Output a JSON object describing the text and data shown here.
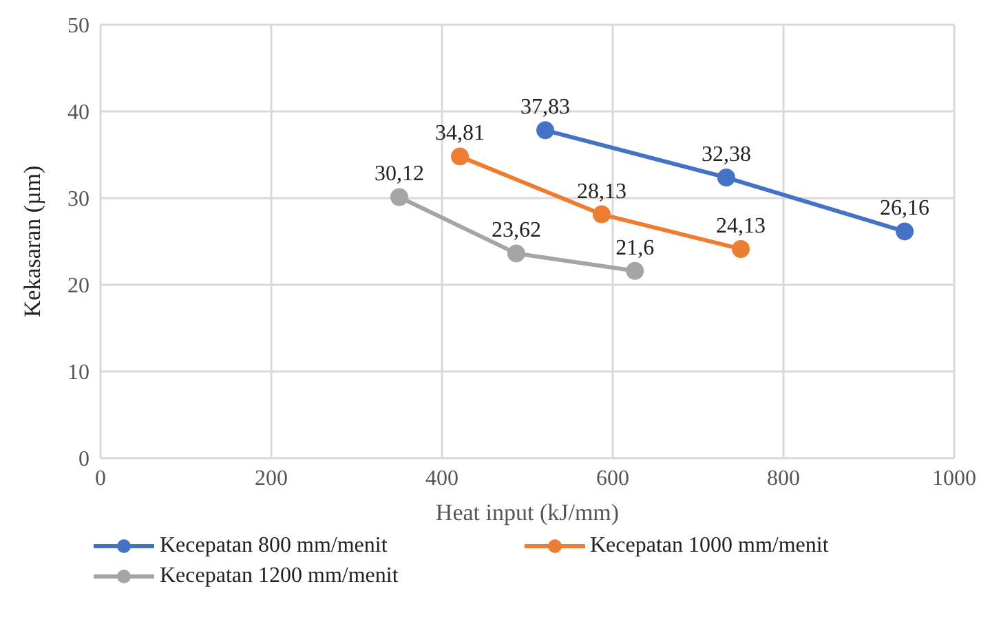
{
  "chart_data": {
    "type": "line",
    "xlabel": "Heat input (kJ/mm)",
    "ylabel": "Kekasaran (µm)",
    "xlim": [
      0,
      1000
    ],
    "xticks": [
      0,
      200,
      400,
      600,
      800,
      1000
    ],
    "ylim": [
      0,
      50
    ],
    "yticks": [
      0,
      10,
      20,
      30,
      40,
      50
    ],
    "grid": true,
    "legend": "bottom",
    "marker": "circle",
    "series": [
      {
        "name": "Kecepatan 800 mm/menit",
        "color": "#4472c4",
        "x": [
          521,
          733,
          942
        ],
        "values": [
          37.83,
          32.38,
          26.16
        ],
        "value_labels": [
          "37,83",
          "32,38",
          "26,16"
        ]
      },
      {
        "name": "Kecepatan 1000 mm/menit",
        "color": "#ed7d31",
        "x": [
          421,
          587,
          750
        ],
        "values": [
          34.81,
          28.13,
          24.13
        ],
        "value_labels": [
          "34,81",
          "28,13",
          "24,13"
        ]
      },
      {
        "name": "Kecepatan 1200 mm/menit",
        "color": "#a5a5a5",
        "x": [
          350,
          487,
          626
        ],
        "values": [
          30.12,
          23.62,
          21.6
        ],
        "value_labels": [
          "30,12",
          "23,62",
          "21,6"
        ]
      }
    ]
  }
}
